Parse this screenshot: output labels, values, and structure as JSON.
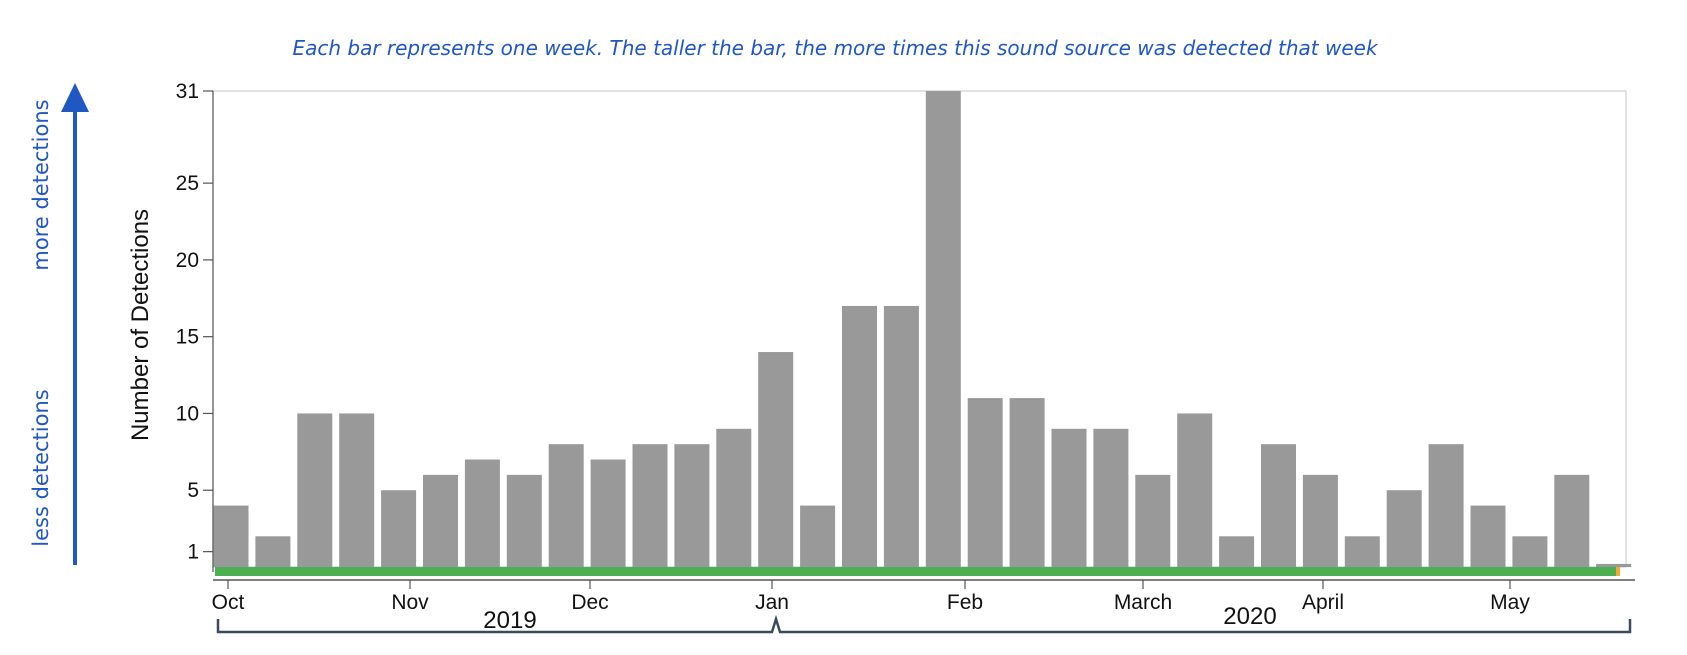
{
  "chart_data": {
    "type": "bar",
    "title": "Each bar represents one week. The taller the bar, the more times this sound source was detected that week",
    "ylabel": "Number of Detections",
    "ylim": [
      0,
      31
    ],
    "yticks": [
      1,
      5,
      10,
      15,
      20,
      25,
      31
    ],
    "values": [
      4,
      2,
      10,
      10,
      5,
      6,
      7,
      6,
      8,
      7,
      8,
      8,
      9,
      14,
      4,
      17,
      17,
      31,
      11,
      11,
      9,
      9,
      6,
      10,
      2,
      8,
      6,
      2,
      5,
      8,
      4,
      2,
      6,
      0.2
    ],
    "month_labels": [
      "Oct",
      "Nov",
      "Dec",
      "Jan",
      "Feb",
      "March",
      "April",
      "May"
    ],
    "years": [
      "2019",
      "2020"
    ],
    "side_labels": {
      "up": "more detections",
      "down": "less detections"
    },
    "colors": {
      "bar": "#999999",
      "annotation": "#1f57c3",
      "baseline": "#4caf50",
      "marker": "#f2a93b"
    }
  }
}
